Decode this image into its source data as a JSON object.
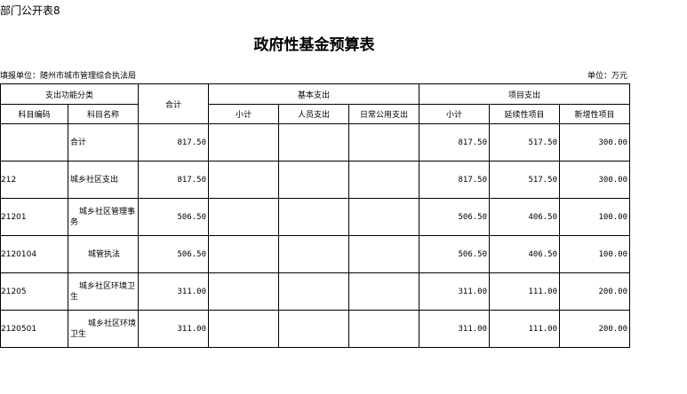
{
  "doc_label": "部门公开表8",
  "title": "政府性基金预算表",
  "filing_unit": "填报单位：随州市城市管理综合执法局",
  "unit": "单位：万元",
  "headers": {
    "category": "支出功能分类",
    "total": "合计",
    "basic": "基本支出",
    "project": "项目支出",
    "code": "科目编码",
    "name": "科目名称",
    "basic_subtotal": "小计",
    "personnel": "人员支出",
    "daily_public": "日常公用支出",
    "project_subtotal": "小计",
    "continuing": "延续性项目",
    "new": "新增性项目"
  },
  "rows": [
    {
      "code": "",
      "name": "合计",
      "total": "817.50",
      "basic_subtotal": "",
      "personnel": "",
      "daily_public": "",
      "project_subtotal": "817.50",
      "continuing": "517.50",
      "new": "300.00"
    },
    {
      "code": "212",
      "name": "城乡社区支出",
      "total": "817.50",
      "basic_subtotal": "",
      "personnel": "",
      "daily_public": "",
      "project_subtotal": "817.50",
      "continuing": "517.50",
      "new": "300.00"
    },
    {
      "code": "21201",
      "name": "城乡社区管理事务",
      "total": "506.50",
      "basic_subtotal": "",
      "personnel": "",
      "daily_public": "",
      "project_subtotal": "506.50",
      "continuing": "406.50",
      "new": "100.00"
    },
    {
      "code": "2120104",
      "name": "城管执法",
      "total": "506.50",
      "basic_subtotal": "",
      "personnel": "",
      "daily_public": "",
      "project_subtotal": "506.50",
      "continuing": "406.50",
      "new": "100.00"
    },
    {
      "code": "21205",
      "name": "城乡社区环境卫生",
      "total": "311.00",
      "basic_subtotal": "",
      "personnel": "",
      "daily_public": "",
      "project_subtotal": "311.00",
      "continuing": "111.00",
      "new": "200.00"
    },
    {
      "code": "2120501",
      "name": "城乡社区环境卫生",
      "total": "311.00",
      "basic_subtotal": "",
      "personnel": "",
      "daily_public": "",
      "project_subtotal": "311.00",
      "continuing": "111.00",
      "new": "200.00"
    }
  ]
}
